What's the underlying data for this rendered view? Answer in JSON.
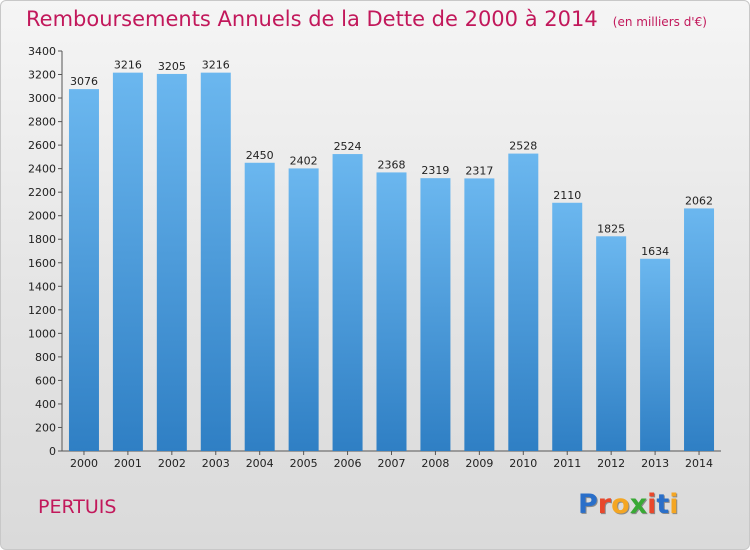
{
  "title": "Remboursements Annuels de la Dette de 2000 à 2014",
  "subtitle": "(en milliers d'€)",
  "commune": "PERTUIS",
  "logo": {
    "letters": [
      "P",
      "r",
      "o",
      "x",
      "i",
      "t",
      "i"
    ],
    "colors": [
      "#2a6fc9",
      "#e8482c",
      "#f4a623",
      "#39a935",
      "#e8482c",
      "#2a6fc9",
      "#f4a623"
    ]
  },
  "colors": {
    "accent": "#c2185b",
    "bar_top": "#6bb7ef",
    "bar_bottom": "#2f7fc4",
    "axis": "#555555"
  },
  "chart_data": {
    "type": "bar",
    "title": "Remboursements Annuels de la Dette de 2000 à 2014",
    "subtitle": "(en milliers d'€)",
    "xlabel": "",
    "ylabel": "",
    "categories": [
      "2000",
      "2001",
      "2002",
      "2003",
      "2004",
      "2005",
      "2006",
      "2007",
      "2008",
      "2009",
      "2010",
      "2011",
      "2012",
      "2013",
      "2014"
    ],
    "values": [
      3076,
      3216,
      3205,
      3216,
      2450,
      2402,
      2524,
      2368,
      2319,
      2317,
      2528,
      2110,
      1825,
      1634,
      2062
    ],
    "ylim": [
      0,
      3400
    ],
    "yticks": [
      0,
      200,
      400,
      600,
      800,
      1000,
      1200,
      1400,
      1600,
      1800,
      2000,
      2200,
      2400,
      2600,
      2800,
      3000,
      3200,
      3400
    ],
    "grid": false,
    "data_labels": true
  }
}
